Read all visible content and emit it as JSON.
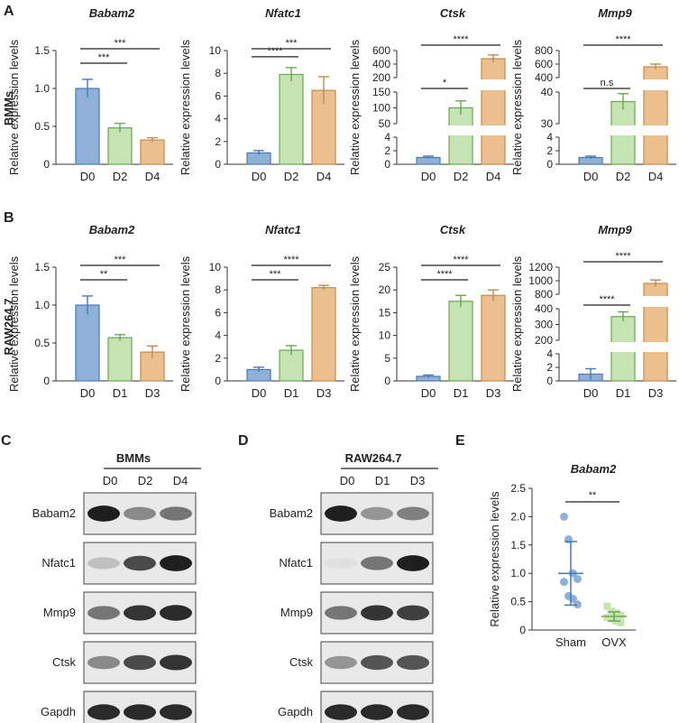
{
  "panels": {
    "A": {
      "letter": "A",
      "row_label": "BMMs"
    },
    "B": {
      "letter": "B",
      "row_label": "RAW264.7"
    },
    "C": {
      "letter": "C",
      "header": "BMMs",
      "lanes": [
        "D0",
        "D2",
        "D4"
      ],
      "proteins": [
        "Babam2",
        "Nfatc1",
        "Mmp9",
        "Ctsk",
        "Gapdh"
      ],
      "intensity": [
        [
          0.95,
          0.45,
          0.55
        ],
        [
          0.2,
          0.75,
          0.95
        ],
        [
          0.55,
          0.85,
          0.9
        ],
        [
          0.45,
          0.75,
          0.85
        ],
        [
          0.9,
          0.9,
          0.9
        ]
      ]
    },
    "D": {
      "letter": "D",
      "header": "RAW264.7",
      "lanes": [
        "D0",
        "D1",
        "D3"
      ],
      "proteins": [
        "Babam2",
        "Nfatc1",
        "Mmp9",
        "Ctsk",
        "Gapdh"
      ],
      "intensity": [
        [
          0.95,
          0.4,
          0.5
        ],
        [
          0.05,
          0.55,
          0.95
        ],
        [
          0.55,
          0.85,
          0.8
        ],
        [
          0.4,
          0.7,
          0.7
        ],
        [
          0.9,
          0.9,
          0.9
        ]
      ]
    },
    "E": {
      "letter": "E"
    }
  },
  "colors": {
    "blue": "#8fb1d9",
    "blue_edge": "#4a78b0",
    "green": "#c5e3b3",
    "green_edge": "#6aa84f",
    "orange": "#ebc08e",
    "orange_edge": "#c08a4c"
  },
  "chart_data": [
    {
      "id": "A1",
      "type": "bar",
      "title": "Babam2",
      "ylabel": "Relative expression levels",
      "categories": [
        "D0",
        "D2",
        "D4"
      ],
      "values": [
        1.0,
        0.48,
        0.32
      ],
      "errors": [
        0.12,
        0.06,
        0.03
      ],
      "ylim": [
        0,
        1.5
      ],
      "yticks": [
        "0",
        "0.5",
        "1.0",
        "1.5"
      ],
      "significance": [
        {
          "from": 0,
          "to": 1,
          "label": "***"
        },
        {
          "from": 0,
          "to": 2,
          "label": "***"
        }
      ]
    },
    {
      "id": "A2",
      "type": "bar",
      "title": "Nfatc1",
      "ylabel": "Relative expression levels",
      "categories": [
        "D0",
        "D2",
        "D4"
      ],
      "values": [
        1.0,
        7.9,
        6.5
      ],
      "errors": [
        0.2,
        0.6,
        1.2
      ],
      "ylim": [
        0,
        10
      ],
      "yticks": [
        "0",
        "2",
        "4",
        "6",
        "8",
        "10"
      ],
      "significance": [
        {
          "from": 0,
          "to": 1,
          "label": "****"
        },
        {
          "from": 0,
          "to": 2,
          "label": "***"
        }
      ]
    },
    {
      "id": "A3",
      "type": "bar",
      "title": "Ctsk",
      "ylabel": "Relative expression levels",
      "categories": [
        "D0",
        "D2",
        "D4"
      ],
      "values": [
        1.0,
        100,
        480
      ],
      "errors": [
        0.2,
        22,
        55
      ],
      "axis_break": true,
      "segments": [
        {
          "ticks": [
            "0",
            "2",
            "4"
          ]
        },
        {
          "ticks": [
            "50",
            "100",
            "150"
          ]
        },
        {
          "ticks": [
            "200",
            "400",
            "600"
          ]
        }
      ],
      "significance": [
        {
          "from": 0,
          "to": 1,
          "label": "*"
        },
        {
          "from": 0,
          "to": 2,
          "label": "****"
        }
      ]
    },
    {
      "id": "A4",
      "type": "bar",
      "title": "Mmp9",
      "ylabel": "Relative expression levels",
      "categories": [
        "D0",
        "D2",
        "D4"
      ],
      "values": [
        1.0,
        37,
        560
      ],
      "errors": [
        0.2,
        2.5,
        40
      ],
      "axis_break": true,
      "segments": [
        {
          "ticks": [
            "0",
            "2",
            "4"
          ]
        },
        {
          "ticks": [
            "30",
            "40"
          ]
        },
        {
          "ticks": [
            "400",
            "600",
            "800"
          ]
        }
      ],
      "significance": [
        {
          "from": 0,
          "to": 1,
          "label": "n.s"
        },
        {
          "from": 0,
          "to": 2,
          "label": "****"
        }
      ]
    },
    {
      "id": "B1",
      "type": "bar",
      "title": "Babam2",
      "ylabel": "Relative expression levels",
      "categories": [
        "D0",
        "D1",
        "D3"
      ],
      "values": [
        1.0,
        0.57,
        0.38
      ],
      "errors": [
        0.12,
        0.04,
        0.08
      ],
      "ylim": [
        0,
        1.5
      ],
      "yticks": [
        "0",
        "0.5",
        "1.0",
        "1.5"
      ],
      "significance": [
        {
          "from": 0,
          "to": 1,
          "label": "**"
        },
        {
          "from": 0,
          "to": 2,
          "label": "***"
        }
      ]
    },
    {
      "id": "B2",
      "type": "bar",
      "title": "Nfatc1",
      "ylabel": "Relative expression levels",
      "categories": [
        "D0",
        "D1",
        "D3"
      ],
      "values": [
        1.0,
        2.7,
        8.2
      ],
      "errors": [
        0.2,
        0.4,
        0.2
      ],
      "ylim": [
        0,
        10
      ],
      "yticks": [
        "0",
        "2",
        "4",
        "6",
        "8",
        "10"
      ],
      "significance": [
        {
          "from": 0,
          "to": 1,
          "label": "***"
        },
        {
          "from": 0,
          "to": 2,
          "label": "****"
        }
      ]
    },
    {
      "id": "B3",
      "type": "bar",
      "title": "Ctsk",
      "ylabel": "Relative expression levels",
      "categories": [
        "D0",
        "D1",
        "D3"
      ],
      "values": [
        1.0,
        17.5,
        18.8
      ],
      "errors": [
        0.3,
        1.3,
        1.2
      ],
      "ylim": [
        0,
        25
      ],
      "yticks": [
        "0",
        "5",
        "10",
        "15",
        "20",
        "25"
      ],
      "significance": [
        {
          "from": 0,
          "to": 1,
          "label": "****"
        },
        {
          "from": 0,
          "to": 2,
          "label": "****"
        }
      ]
    },
    {
      "id": "B4",
      "type": "bar",
      "title": "Mmp9",
      "ylabel": "Relative expression levels",
      "categories": [
        "D0",
        "D1",
        "D3"
      ],
      "values": [
        1.0,
        350,
        960
      ],
      "errors": [
        0.8,
        30,
        50
      ],
      "axis_break": true,
      "segments": [
        {
          "ticks": [
            "0",
            "2",
            "4"
          ]
        },
        {
          "ticks": [
            "200",
            "300",
            "400"
          ]
        },
        {
          "ticks": [
            "800",
            "1000",
            "1200"
          ]
        }
      ],
      "significance": [
        {
          "from": 0,
          "to": 1,
          "label": "****"
        },
        {
          "from": 0,
          "to": 2,
          "label": "****"
        }
      ]
    },
    {
      "id": "E",
      "type": "scatter",
      "title": "Babam2",
      "ylabel": "Relative expression levels",
      "categories": [
        "Sham",
        "OVX"
      ],
      "ylim": [
        0,
        2.5
      ],
      "yticks": [
        "0",
        "0.5",
        "1.0",
        "1.5",
        "2.0",
        "2.5"
      ],
      "means": [
        1.0,
        0.24
      ],
      "sds": [
        0.56,
        0.08
      ],
      "points": [
        [
          2.0,
          1.6,
          1.0,
          0.9,
          0.85,
          0.6,
          0.55,
          0.45
        ],
        [
          0.42,
          0.33,
          0.3,
          0.26,
          0.22,
          0.2,
          0.16,
          0.13
        ]
      ],
      "significance": [
        {
          "from": 0,
          "to": 1,
          "label": "**"
        }
      ]
    }
  ]
}
